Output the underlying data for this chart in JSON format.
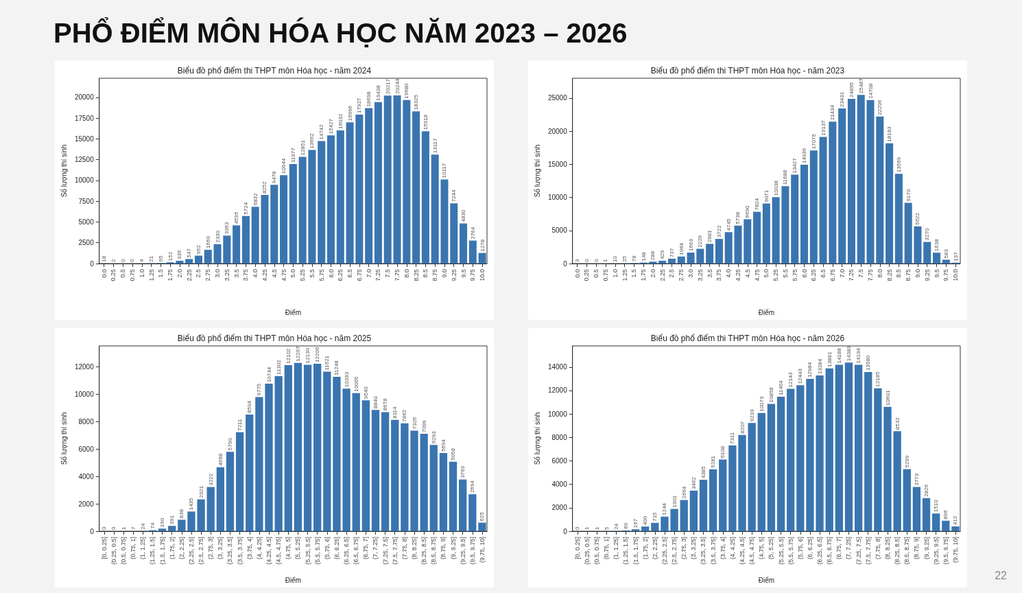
{
  "chart_data": [
    {
      "type": "other",
      "title": "PHỔ ĐIỂM MÔN HÓA HỌC NĂM 2023 – 2026",
      "annotations": [
        "22"
      ]
    },
    {
      "type": "bar",
      "title": "Biểu đồ phổ điểm thi THPT môn Hóa học - năm 2024",
      "xlabel": "Điểm",
      "ylabel": "Số lượng thí sinh",
      "color": "#3a75b0",
      "data_labels": true,
      "ylim": [
        0,
        22300
      ],
      "yticks": [
        0,
        2500,
        5000,
        7500,
        10000,
        12500,
        15000,
        17500,
        20000
      ],
      "categories": [
        "0.0",
        "0.25",
        "0.5",
        "0.75",
        "1.0",
        "1.25",
        "1.5",
        "1.75",
        "2.0",
        "2.25",
        "2.5",
        "2.75",
        "3.0",
        "3.25",
        "3.5",
        "3.75",
        "4.0",
        "4.25",
        "4.5",
        "4.75",
        "5.0",
        "5.25",
        "5.5",
        "5.75",
        "6.0",
        "6.25",
        "6.5",
        "6.75",
        "7.0",
        "7.25",
        "7.5",
        "7.75",
        "8.0",
        "8.25",
        "8.5",
        "8.75",
        "9.0",
        "9.25",
        "9.5",
        "9.75",
        "10.0"
      ],
      "values": [
        18,
        2,
        0,
        0,
        4,
        21,
        65,
        152,
        336,
        547,
        952,
        1660,
        2330,
        3363,
        4595,
        5724,
        6832,
        8252,
        9478,
        10644,
        11977,
        12851,
        13662,
        14742,
        15427,
        16032,
        16996,
        17927,
        18698,
        19438,
        20217,
        20244,
        19680,
        18325,
        15918,
        13117,
        10117,
        7244,
        4830,
        2764,
        1278
      ]
    },
    {
      "type": "bar",
      "title": "Biểu đồ phổ điểm thi THPT môn Hóa học - năm 2023",
      "xlabel": "Điểm",
      "ylabel": "Số lượng thí sinh",
      "color": "#3a75b0",
      "data_labels": true,
      "ylim": [
        0,
        28000
      ],
      "yticks": [
        0,
        5000,
        10000,
        15000,
        20000,
        25000
      ],
      "categories": [
        "0.0",
        "0.25",
        "0.5",
        "0.75",
        "1.0",
        "1.25",
        "1.5",
        "1.75",
        "2.0",
        "2.25",
        "2.5",
        "2.75",
        "3.0",
        "3.25",
        "3.5",
        "3.75",
        "4.0",
        "4.25",
        "4.5",
        "4.75",
        "5.0",
        "5.25",
        "5.5",
        "5.75",
        "6.0",
        "6.25",
        "6.5",
        "6.75",
        "7.0",
        "7.25",
        "7.5",
        "7.75",
        "8.0",
        "8.25",
        "8.5",
        "8.75",
        "9.0",
        "9.25",
        "9.5",
        "9.75",
        "10.0"
      ],
      "values": [
        3,
        0,
        0,
        1,
        10,
        25,
        78,
        148,
        288,
        429,
        737,
        1064,
        1663,
        2229,
        2981,
        3722,
        4745,
        5738,
        6690,
        7824,
        9071,
        10038,
        11688,
        13427,
        14936,
        17075,
        19137,
        21434,
        23431,
        24895,
        25487,
        24708,
        22206,
        18183,
        13569,
        9170,
        5622,
        3270,
        1638,
        583,
        137
      ]
    },
    {
      "type": "bar",
      "title": "Biểu đồ phổ điểm thi THPT môn Hóa học - năm 2025",
      "xlabel": "Điểm",
      "ylabel": "Số lượng thí sinh",
      "color": "#3a75b0",
      "data_labels": true,
      "ylim": [
        0,
        13500
      ],
      "yticks": [
        0,
        2000,
        4000,
        6000,
        8000,
        10000,
        12000
      ],
      "categories": [
        "[0, 0.25]",
        "(0.25, 0.5]",
        "(0.5, 0.75]",
        "(0.75, 1]",
        "(1, 1.25]",
        "(1.25, 1.5]",
        "(1.5, 1.75]",
        "(1.75, 2]",
        "(2, 2.25]",
        "(2.25, 2.5]",
        "(2.5, 2.75]",
        "(2.75, 3]",
        "(3, 3.25]",
        "(3.25, 3.5]",
        "(3.5, 3.75]",
        "(3.75, 4]",
        "(4, 4.25]",
        "(4.25, 4.5]",
        "(4.5, 4.75]",
        "(4.75, 5]",
        "(5, 5.25]",
        "(5.25, 5.5]",
        "(5.5, 5.75]",
        "(5.75, 6]",
        "(6, 6.25]",
        "(6.25, 6.5]",
        "(6.5, 6.75]",
        "(6.75, 7]",
        "(7, 7.25]",
        "(7.25, 7.5]",
        "(7.5, 7.75]",
        "(7.75, 8]",
        "(8, 8.25]",
        "(8.25, 8.5]",
        "(8.5, 8.75]",
        "(8.75, 9]",
        "(9, 9.25]",
        "(9.25, 9.5]",
        "(9.5, 9.75]",
        "(9.75, 10]"
      ],
      "values": [
        0,
        0,
        1,
        7,
        24,
        74,
        190,
        391,
        838,
        1435,
        2321,
        3222,
        4668,
        5790,
        7211,
        8504,
        9775,
        10744,
        11302,
        12102,
        12267,
        12130,
        12206,
        11621,
        11248,
        10393,
        10065,
        9540,
        8840,
        8678,
        8114,
        7862,
        7326,
        7099,
        6293,
        5694,
        5058,
        3769,
        2694,
        625
      ]
    },
    {
      "type": "bar",
      "title": "Biểu đồ phổ điểm thi THPT môn Hóa học - năm 2026",
      "xlabel": "Điểm",
      "ylabel": "Số lượng thí sinh",
      "color": "#3a75b0",
      "data_labels": true,
      "ylim": [
        0,
        15800
      ],
      "yticks": [
        0,
        2000,
        4000,
        6000,
        8000,
        10000,
        12000,
        14000
      ],
      "categories": [
        "[0, 0.25]",
        "(0.25, 0.5]",
        "(0.5, 0.75]",
        "(0.75, 1]",
        "(1, 1.25]",
        "(1.25, 1.5]",
        "(1.5, 1.75]",
        "(1.75, 2]",
        "(2, 2.25]",
        "(2.25, 2.5]",
        "(2.5, 2.75]",
        "(2.75, 3]",
        "(3, 3.25]",
        "(3.25, 3.5]",
        "(3.5, 3.75]",
        "(3.75, 4]",
        "(4, 4.25]",
        "(4.25, 4.5]",
        "(4.5, 4.75]",
        "(4.75, 5]",
        "(5, 5.25]",
        "(5.25, 5.5]",
        "(5.5, 5.75]",
        "(5.75, 6]",
        "(6, 6.25]",
        "(6.25, 6.5]",
        "(6.5, 6.75]",
        "(6.75, 7]",
        "(7, 7.25]",
        "(7.25, 7.5]",
        "(7.5, 7.75]",
        "(7.75, 8]",
        "(8, 8.25]",
        "(8.25, 8.5]",
        "(8.5, 8.75]",
        "(8.75, 9]",
        "(9, 9.25]",
        "(9.25, 9.5]",
        "(9.5, 9.75]",
        "(9.75, 10]"
      ],
      "values": [
        0,
        1,
        1,
        5,
        24,
        69,
        167,
        400,
        715,
        1244,
        1901,
        2664,
        3462,
        4385,
        5281,
        6108,
        7311,
        8207,
        9233,
        10073,
        10858,
        11464,
        12143,
        12443,
        12984,
        13284,
        13881,
        14188,
        14383,
        14194,
        13580,
        12185,
        10601,
        8532,
        5299,
        3773,
        2826,
        1510,
        896,
        412
      ]
    }
  ]
}
